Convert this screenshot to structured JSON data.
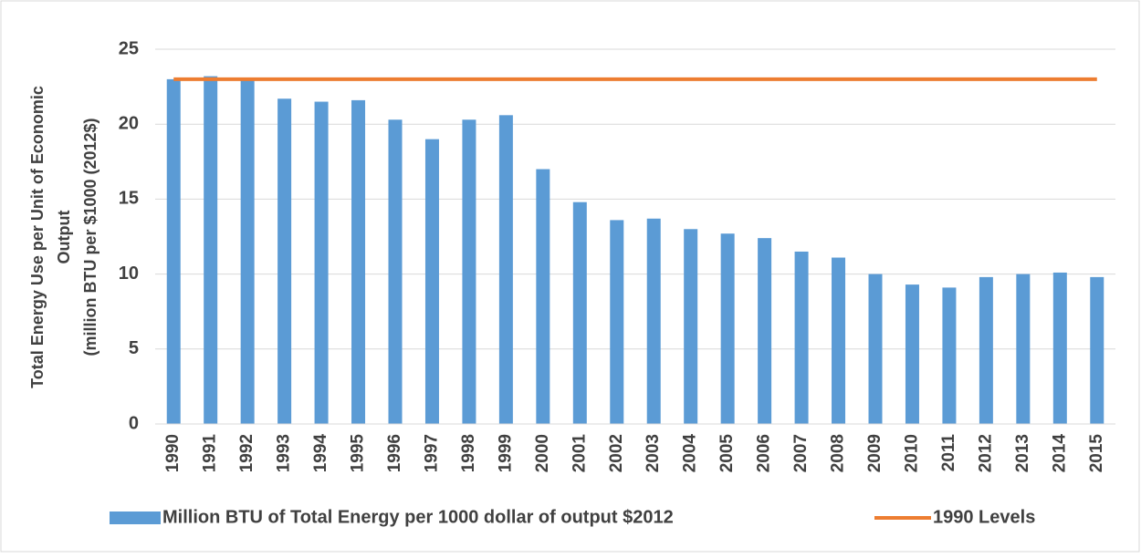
{
  "chart_data": {
    "type": "bar",
    "ylabel": [
      "Total Energy Use per Unit of Economic",
      "Output",
      "(million BTU per  $1000 (2012$)"
    ],
    "categories": [
      "1990",
      "1991",
      "1992",
      "1993",
      "1994",
      "1995",
      "1996",
      "1997",
      "1998",
      "1999",
      "2000",
      "2001",
      "2002",
      "2003",
      "2004",
      "2005",
      "2006",
      "2007",
      "2008",
      "2009",
      "2010",
      "2011",
      "2012",
      "2013",
      "2014",
      "2015"
    ],
    "series": [
      {
        "name": "Million BTU of Total Energy per 1000 dollar of output $2012",
        "type": "bar",
        "color": "#5b9bd5",
        "values": [
          23.0,
          23.2,
          23.0,
          21.7,
          21.5,
          21.6,
          20.3,
          19.0,
          20.3,
          20.6,
          17.0,
          14.8,
          13.6,
          13.7,
          13.0,
          12.7,
          12.4,
          11.5,
          11.1,
          10.0,
          9.3,
          9.1,
          9.8,
          10.0,
          10.1,
          9.8
        ]
      },
      {
        "name": "1990 Levels",
        "type": "line",
        "color": "#ed7d31",
        "values": [
          23.0,
          23.0,
          23.0,
          23.0,
          23.0,
          23.0,
          23.0,
          23.0,
          23.0,
          23.0,
          23.0,
          23.0,
          23.0,
          23.0,
          23.0,
          23.0,
          23.0,
          23.0,
          23.0,
          23.0,
          23.0,
          23.0,
          23.0,
          23.0,
          23.0,
          23.0
        ]
      }
    ],
    "ylim": [
      0,
      25
    ],
    "yticks": [
      0,
      5,
      10,
      15,
      20,
      25
    ],
    "grid": true,
    "legend": "bottom"
  }
}
